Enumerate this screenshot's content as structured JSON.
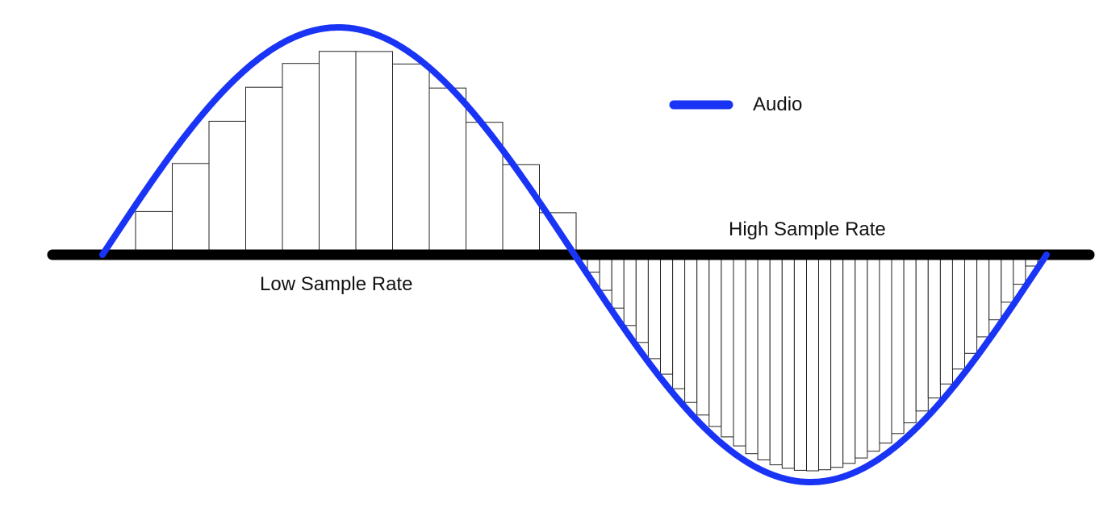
{
  "diagram": {
    "legend": {
      "label": "Audio",
      "color": "#1a34f5"
    },
    "labels": {
      "low_rate": "Low Sample Rate",
      "high_rate": "High Sample Rate"
    },
    "axis_color": "#000000",
    "low_rate_sample_count": 12,
    "high_rate_sample_count": 37
  }
}
